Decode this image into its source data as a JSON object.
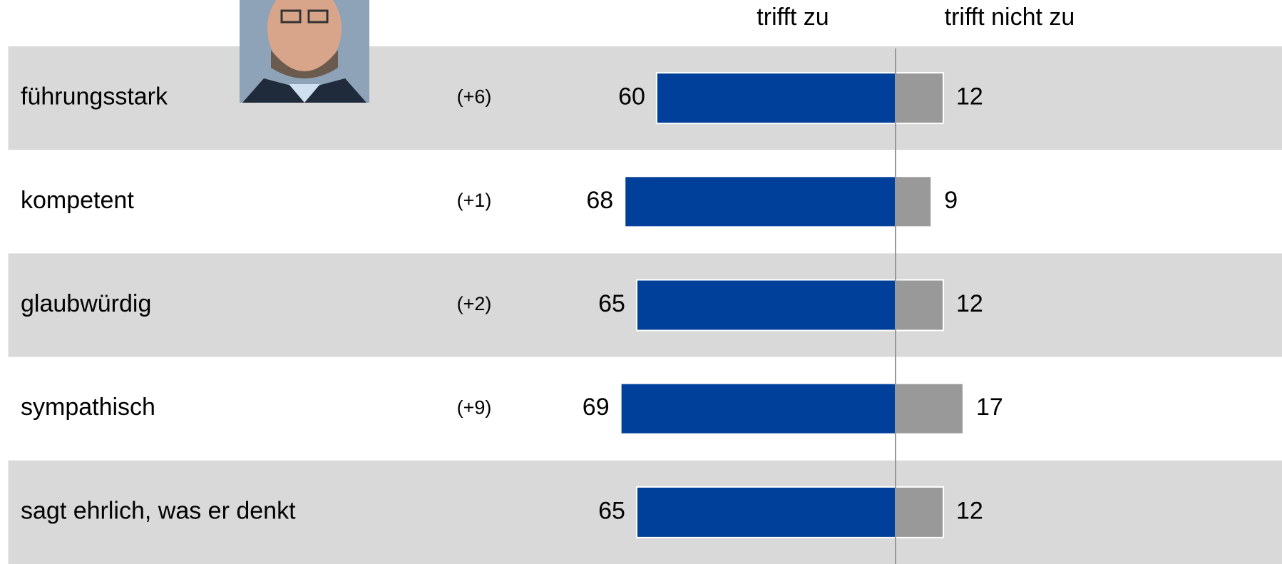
{
  "chart_data": {
    "type": "diverging-bar",
    "categories": [
      "führungsstark",
      "kompetent",
      "glaubwürdig",
      "sympathisch",
      "sagt ehrlich, was er denkt"
    ],
    "changes": [
      "(+6)",
      "(+1)",
      "(+2)",
      "(+9)",
      null
    ],
    "series": [
      {
        "name": "trifft zu",
        "color": "#00409a",
        "values": [
          60,
          68,
          65,
          69,
          65
        ]
      },
      {
        "name": "trifft nicht zu",
        "color": "#999999",
        "values": [
          12,
          9,
          12,
          17,
          12
        ]
      }
    ]
  }
}
